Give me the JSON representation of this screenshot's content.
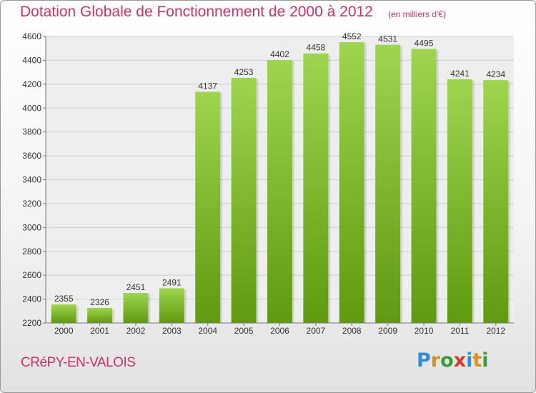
{
  "header": {
    "title": "Dotation Globale de Fonctionnement de 2000 à 2012",
    "unit": "(en milliers d'€)"
  },
  "footer": {
    "commune": "CRéPY-EN-VALOIS",
    "logo_text": "Proxiti",
    "logo_colors": [
      "#2f8fd0",
      "#e08f1e",
      "#3a9b3a",
      "#d93a2a",
      "#2f8fd0",
      "#e08f1e",
      "#3a9b3a"
    ]
  },
  "chart_data": {
    "type": "bar",
    "categories": [
      "2000",
      "2001",
      "2002",
      "2003",
      "2004",
      "2005",
      "2006",
      "2007",
      "2008",
      "2009",
      "2010",
      "2011",
      "2012"
    ],
    "values": [
      2355,
      2326,
      2451,
      2491,
      4137,
      4253,
      4402,
      4458,
      4552,
      4531,
      4495,
      4241,
      4234
    ],
    "title": "Dotation Globale de Fonctionnement de 2000 à 2012",
    "xlabel": "",
    "ylabel": "",
    "ylim": [
      2200,
      4600
    ],
    "yticks": [
      2200,
      2400,
      2600,
      2800,
      3000,
      3200,
      3400,
      3600,
      3800,
      4000,
      4200,
      4400,
      4600
    ],
    "grid": true,
    "bar_color_top": "#9fd44f",
    "bar_color_bottom": "#5f9a10"
  }
}
